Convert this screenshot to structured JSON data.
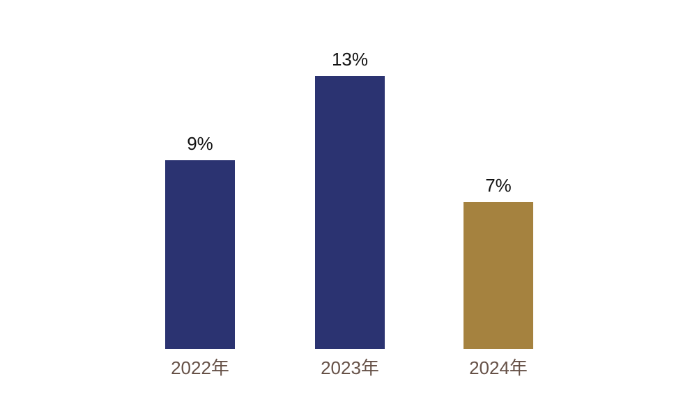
{
  "chart_data": {
    "type": "bar",
    "title": "",
    "xlabel": "",
    "ylabel": "",
    "categories": [
      "2022年",
      "2023年",
      "2024年"
    ],
    "values": [
      9,
      13,
      7
    ],
    "value_labels": [
      "9%",
      "13%",
      "7%"
    ],
    "unit": "%",
    "ylim": [
      0,
      13
    ],
    "grid": false,
    "legend": false,
    "axis_lines": false,
    "background_color": "#ffffff",
    "bar_colors": [
      "#2b3371",
      "#2b3371",
      "#a5823f"
    ],
    "value_label_color": "#121212",
    "category_label_color": "#665147"
  }
}
